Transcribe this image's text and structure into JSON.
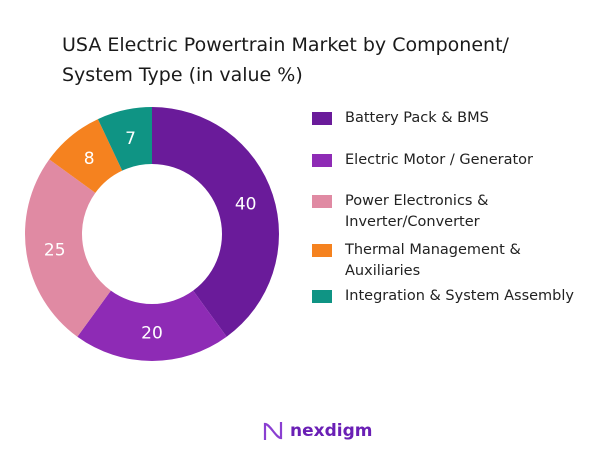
{
  "chart_data": {
    "type": "pie",
    "variant": "donut",
    "title": "USA Electric Powertrain Market by Component/ System Type (in value %)",
    "title_lines": [
      "USA Electric Powertrain Market by Component/",
      "System Type (in value %)"
    ],
    "categories": [
      "Battery Pack & BMS",
      "Electric Motor / Generator",
      "Power Electronics & Inverter/Converter",
      "Thermal Management & Auxiliaries",
      "Integration & System Assembly"
    ],
    "legend_lines": [
      [
        "Battery Pack & BMS"
      ],
      [
        "Electric Motor / Generator"
      ],
      [
        "Power Electronics &",
        "Inverter/Converter"
      ],
      [
        "Thermal Management &",
        "Auxiliaries"
      ],
      [
        "Integration & System Assembly"
      ]
    ],
    "values": [
      40,
      20,
      25,
      8,
      7
    ],
    "colors": [
      "#6a1b9a",
      "#8e2bb5",
      "#e08aa3",
      "#f5821f",
      "#0f9484"
    ],
    "legend_position": "right"
  },
  "branding": {
    "logo_text": "nexdigm"
  }
}
